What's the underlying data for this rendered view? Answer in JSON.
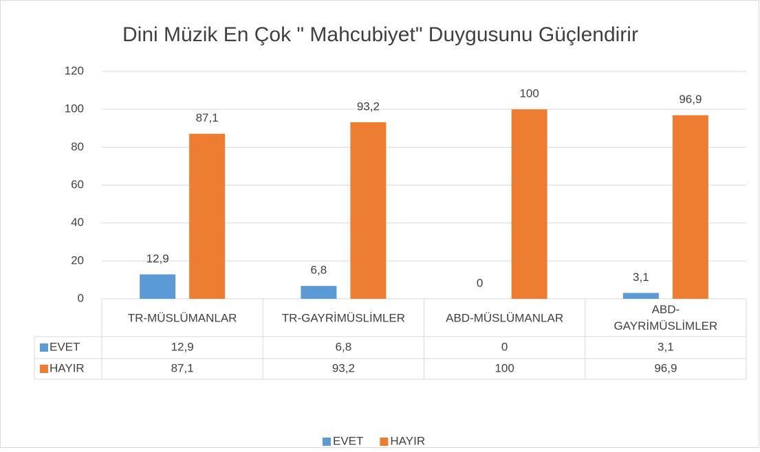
{
  "chart_data": {
    "type": "bar",
    "title": "Dini Müzik En Çok \" Mahcubiyet\" Duygusunu Güçlendirir",
    "categories": [
      "TR-MÜSLÜMANLAR",
      "TR-GAYRİMÜSLİMLER",
      "ABD-MÜSLÜMANLAR",
      "ABD-GAYRİMÜSLİMLER"
    ],
    "series": [
      {
        "name": "EVET",
        "color": "#5b9bd5",
        "values": [
          12.9,
          6.8,
          0,
          3.1
        ],
        "value_labels": [
          "12,9",
          "6,8",
          "0",
          "3,1"
        ]
      },
      {
        "name": "HAYIR",
        "color": "#ed7d31",
        "values": [
          87.1,
          93.2,
          100,
          96.9
        ],
        "value_labels": [
          "87,1",
          "93,2",
          "100",
          "96,9"
        ]
      }
    ],
    "ylim": [
      0,
      120
    ],
    "yticks": [
      0,
      20,
      40,
      60,
      80,
      100,
      120
    ],
    "grid": true,
    "legend": "bottom"
  }
}
